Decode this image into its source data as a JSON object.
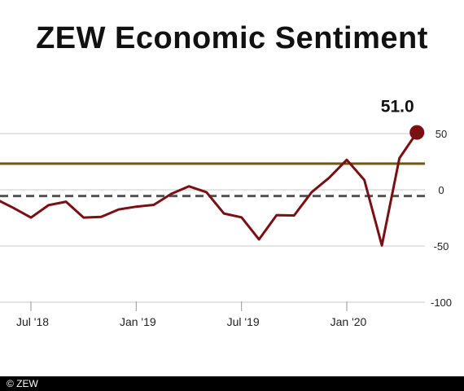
{
  "chart_data": {
    "type": "line",
    "title": "ZEW Economic Sentiment",
    "xlabel": "",
    "ylabel": "",
    "ylim": [
      -100,
      50
    ],
    "y_ticks": [
      50,
      0,
      -50,
      -100
    ],
    "x_ticks": [
      {
        "label": "Jul '18",
        "date": "2018-07"
      },
      {
        "label": "Jan '19",
        "date": "2019-01"
      },
      {
        "label": "Jul '19",
        "date": "2019-07"
      },
      {
        "label": "Jan '20",
        "date": "2020-01"
      }
    ],
    "grid": true,
    "series": [
      {
        "color": "#7a0f14",
        "points": [
          {
            "date": "2018-05",
            "value": -8.2
          },
          {
            "date": "2018-06",
            "value": -16.1
          },
          {
            "date": "2018-07",
            "value": -24.7
          },
          {
            "date": "2018-08",
            "value": -13.7
          },
          {
            "date": "2018-09",
            "value": -10.6
          },
          {
            "date": "2018-10",
            "value": -24.7
          },
          {
            "date": "2018-11",
            "value": -24.1
          },
          {
            "date": "2018-12",
            "value": -17.5
          },
          {
            "date": "2019-01",
            "value": -15.0
          },
          {
            "date": "2019-02",
            "value": -13.4
          },
          {
            "date": "2019-03",
            "value": -3.6
          },
          {
            "date": "2019-04",
            "value": 3.1
          },
          {
            "date": "2019-05",
            "value": -2.1
          },
          {
            "date": "2019-06",
            "value": -21.1
          },
          {
            "date": "2019-07",
            "value": -24.5
          },
          {
            "date": "2019-08",
            "value": -44.1
          },
          {
            "date": "2019-09",
            "value": -22.5
          },
          {
            "date": "2019-10",
            "value": -22.8
          },
          {
            "date": "2019-11",
            "value": -2.1
          },
          {
            "date": "2019-12",
            "value": 10.7
          },
          {
            "date": "2020-01",
            "value": 26.7
          },
          {
            "date": "2020-02",
            "value": 8.7
          },
          {
            "date": "2020-03",
            "value": -49.5
          },
          {
            "date": "2020-04",
            "value": 28.2
          },
          {
            "date": "2020-05",
            "value": 51.0
          }
        ]
      }
    ],
    "reference_lines": [
      {
        "value": 23.3,
        "style": "solid",
        "color": "#6b5a12"
      },
      {
        "value": -5.5,
        "style": "dashed",
        "color": "#555555"
      }
    ],
    "last_value_label": "51.0",
    "accent_color": "#7a0f14"
  },
  "footer": {
    "copyright": "© ZEW"
  }
}
